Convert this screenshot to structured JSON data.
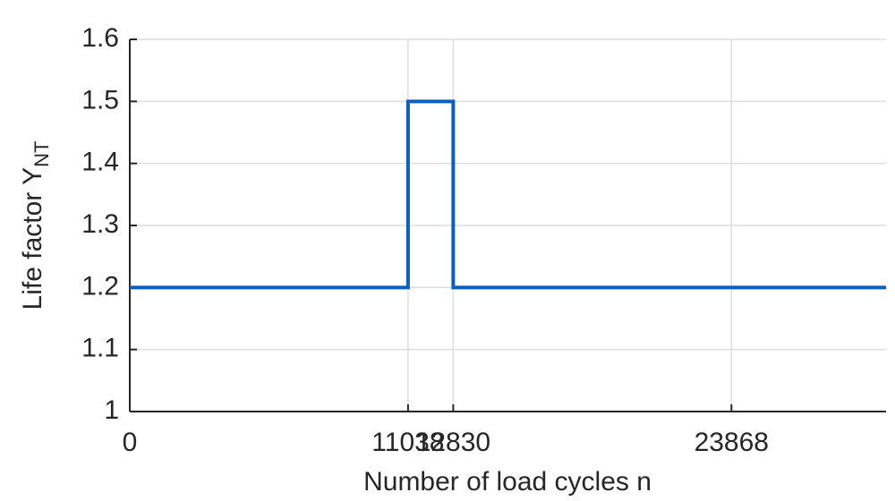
{
  "chart_data": {
    "type": "line",
    "xlabel": "Number of load cycles n",
    "ylabel": {
      "text": "Life factor Y",
      "subscript": "NT"
    },
    "x": [
      0,
      11038,
      11038,
      12830,
      12830,
      30000
    ],
    "values": [
      1.2,
      1.2,
      1.5,
      1.5,
      1.2,
      1.2
    ],
    "color": "#0a5fc0",
    "xlim": [
      0,
      30000
    ],
    "ylim": [
      1,
      1.6
    ],
    "xticks": [
      0,
      11038,
      12830,
      23868
    ],
    "yticks": [
      1,
      1.1,
      1.2,
      1.3,
      1.4,
      1.5,
      1.6
    ],
    "grid": true
  }
}
